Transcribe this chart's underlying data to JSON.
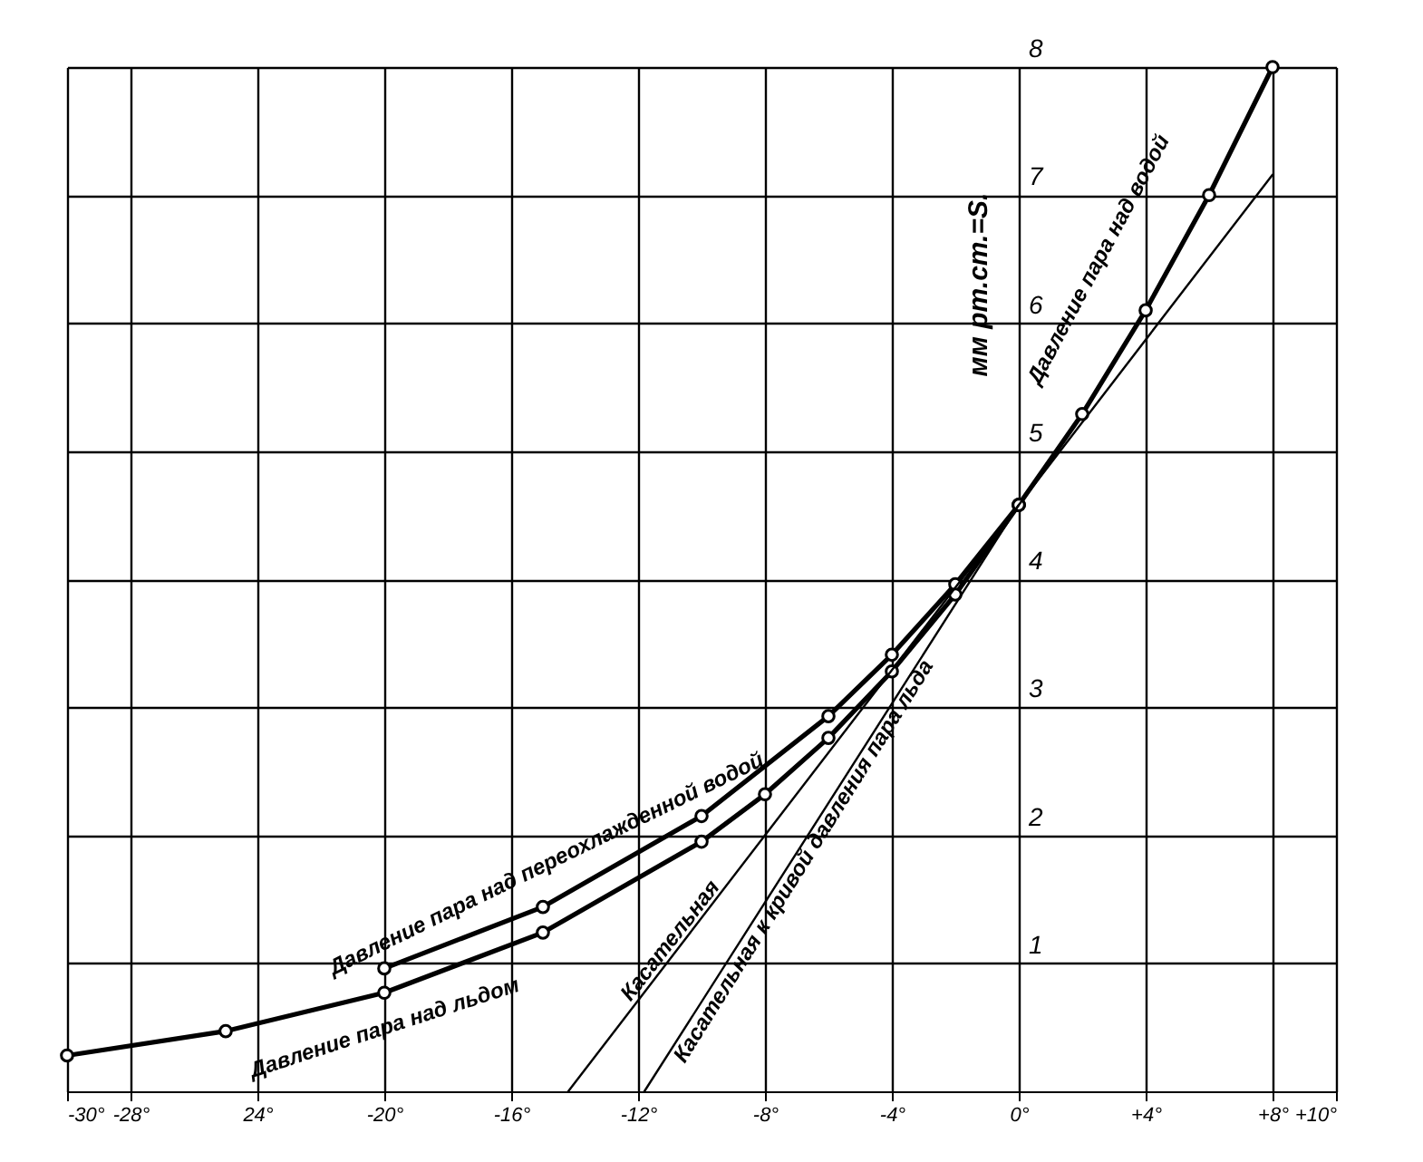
{
  "chart_data": {
    "type": "line",
    "ylabel": "мм рт.ст.=S.",
    "xlim": [
      -30,
      10
    ],
    "ylim": [
      0,
      8
    ],
    "xticks": [
      {
        "value": -30,
        "label": "-30°"
      },
      {
        "value": -28,
        "label": "-28°"
      },
      {
        "value": -24,
        "label": "24°"
      },
      {
        "value": -20,
        "label": "-20°"
      },
      {
        "value": -16,
        "label": "-16°"
      },
      {
        "value": -12,
        "label": "-12°"
      },
      {
        "value": -8,
        "label": "-8°"
      },
      {
        "value": -4,
        "label": "-4°"
      },
      {
        "value": 0,
        "label": "0°"
      },
      {
        "value": 4,
        "label": "+4°"
      },
      {
        "value": 8,
        "label": "+8°"
      },
      {
        "value": 10,
        "label": "+10°"
      }
    ],
    "yticks": [
      1,
      2,
      3,
      4,
      5,
      6,
      7,
      8
    ],
    "grid": true,
    "series": [
      {
        "name": "Давление пара над переохлажденной водой",
        "color": "#000000",
        "type": "line",
        "marker": "circle",
        "x": [
          -20,
          -15,
          -10,
          -6,
          -4,
          -2,
          0
        ],
        "values": [
          0.96,
          1.44,
          2.15,
          2.93,
          3.41,
          3.96,
          4.58
        ]
      },
      {
        "name": "Давление пара над льдом",
        "color": "#000000",
        "type": "line",
        "marker": "circle",
        "x": [
          -30,
          -25,
          -20,
          -15,
          -10,
          -8,
          -6,
          -4,
          -2,
          0
        ],
        "values": [
          0.28,
          0.47,
          0.77,
          1.24,
          1.95,
          2.32,
          2.76,
          3.28,
          3.88,
          4.58
        ]
      },
      {
        "name": "Давление пара над водой",
        "color": "#000000",
        "type": "line",
        "marker": "circle",
        "x": [
          0,
          2,
          4,
          6,
          8
        ],
        "values": [
          4.58,
          5.29,
          6.1,
          7.0,
          8.0
        ]
      },
      {
        "name": "Касательная",
        "color": "#000000",
        "type": "line",
        "marker": "none",
        "x": [
          -14.2,
          8
        ],
        "values": [
          0,
          7.16
        ]
      },
      {
        "name": "Касательная к кривой давления пара льда",
        "color": "#000000",
        "type": "line",
        "marker": "none",
        "x": [
          -11.8,
          0
        ],
        "values": [
          0,
          4.58
        ]
      }
    ]
  }
}
